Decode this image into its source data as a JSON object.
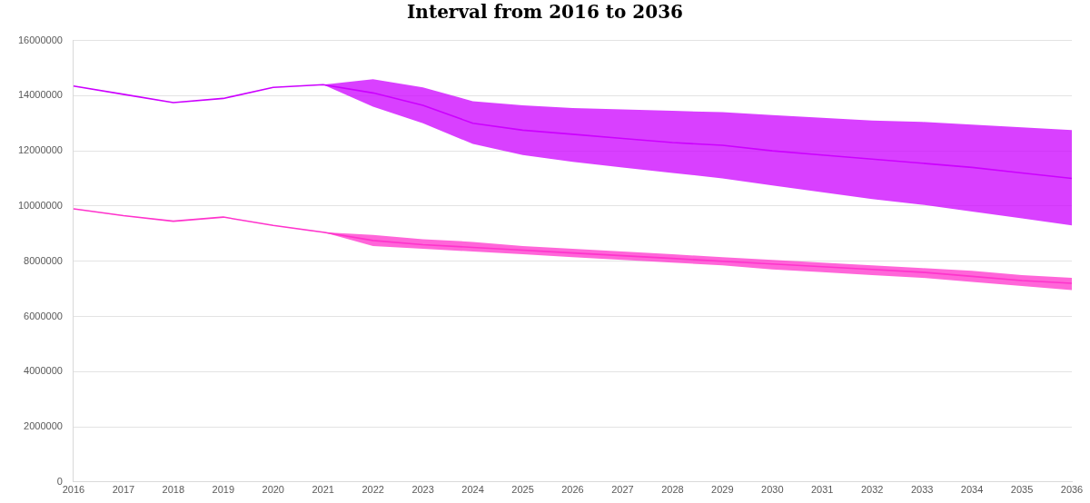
{
  "chart_data": {
    "type": "line",
    "title": "Interval from 2016 to 2036",
    "categories": [
      "2016",
      "2017",
      "2018",
      "2019",
      "2020",
      "2021",
      "2022",
      "2023",
      "2024",
      "2025",
      "2026",
      "2027",
      "2028",
      "2029",
      "2030",
      "2031",
      "2032",
      "2033",
      "2034",
      "2035",
      "2036"
    ],
    "series": [
      {
        "color": "#cc00ff",
        "values": [
          14350000,
          14050000,
          13750000,
          13900000,
          14300000,
          14400000,
          14100000,
          13650000,
          13000000,
          12750000,
          12600000,
          12450000,
          12300000,
          12200000,
          12000000,
          11850000,
          11700000,
          11550000,
          11400000,
          11200000,
          11000000
        ],
        "lower": [
          null,
          null,
          null,
          null,
          null,
          14400000,
          13600000,
          13000000,
          12250000,
          11850000,
          11600000,
          11400000,
          11200000,
          11000000,
          10750000,
          10500000,
          10250000,
          10050000,
          9800000,
          9550000,
          9300000
        ],
        "upper": [
          null,
          null,
          null,
          null,
          null,
          14400000,
          14600000,
          14300000,
          13800000,
          13650000,
          13550000,
          13500000,
          13450000,
          13400000,
          13300000,
          13200000,
          13100000,
          13050000,
          12950000,
          12850000,
          12750000
        ]
      },
      {
        "color": "#ff33cc",
        "values": [
          9900000,
          9650000,
          9450000,
          9600000,
          9300000,
          9050000,
          8750000,
          8600000,
          8500000,
          8400000,
          8300000,
          8200000,
          8100000,
          8000000,
          7900000,
          7800000,
          7700000,
          7600000,
          7450000,
          7300000,
          7200000
        ],
        "lower": [
          null,
          null,
          null,
          null,
          null,
          9050000,
          8550000,
          8450000,
          8350000,
          8250000,
          8150000,
          8050000,
          7950000,
          7850000,
          7700000,
          7600000,
          7500000,
          7400000,
          7250000,
          7100000,
          6950000
        ],
        "upper": [
          null,
          null,
          null,
          null,
          null,
          9050000,
          8950000,
          8800000,
          8700000,
          8550000,
          8450000,
          8350000,
          8250000,
          8150000,
          8050000,
          7950000,
          7850000,
          7750000,
          7650000,
          7500000,
          7400000
        ]
      }
    ],
    "ylim": [
      0,
      16000000
    ],
    "yticks": [
      0,
      2000000,
      4000000,
      6000000,
      8000000,
      10000000,
      12000000,
      14000000,
      16000000
    ],
    "grid": "y",
    "legend": false,
    "marker": "none",
    "line_style": "solid"
  }
}
